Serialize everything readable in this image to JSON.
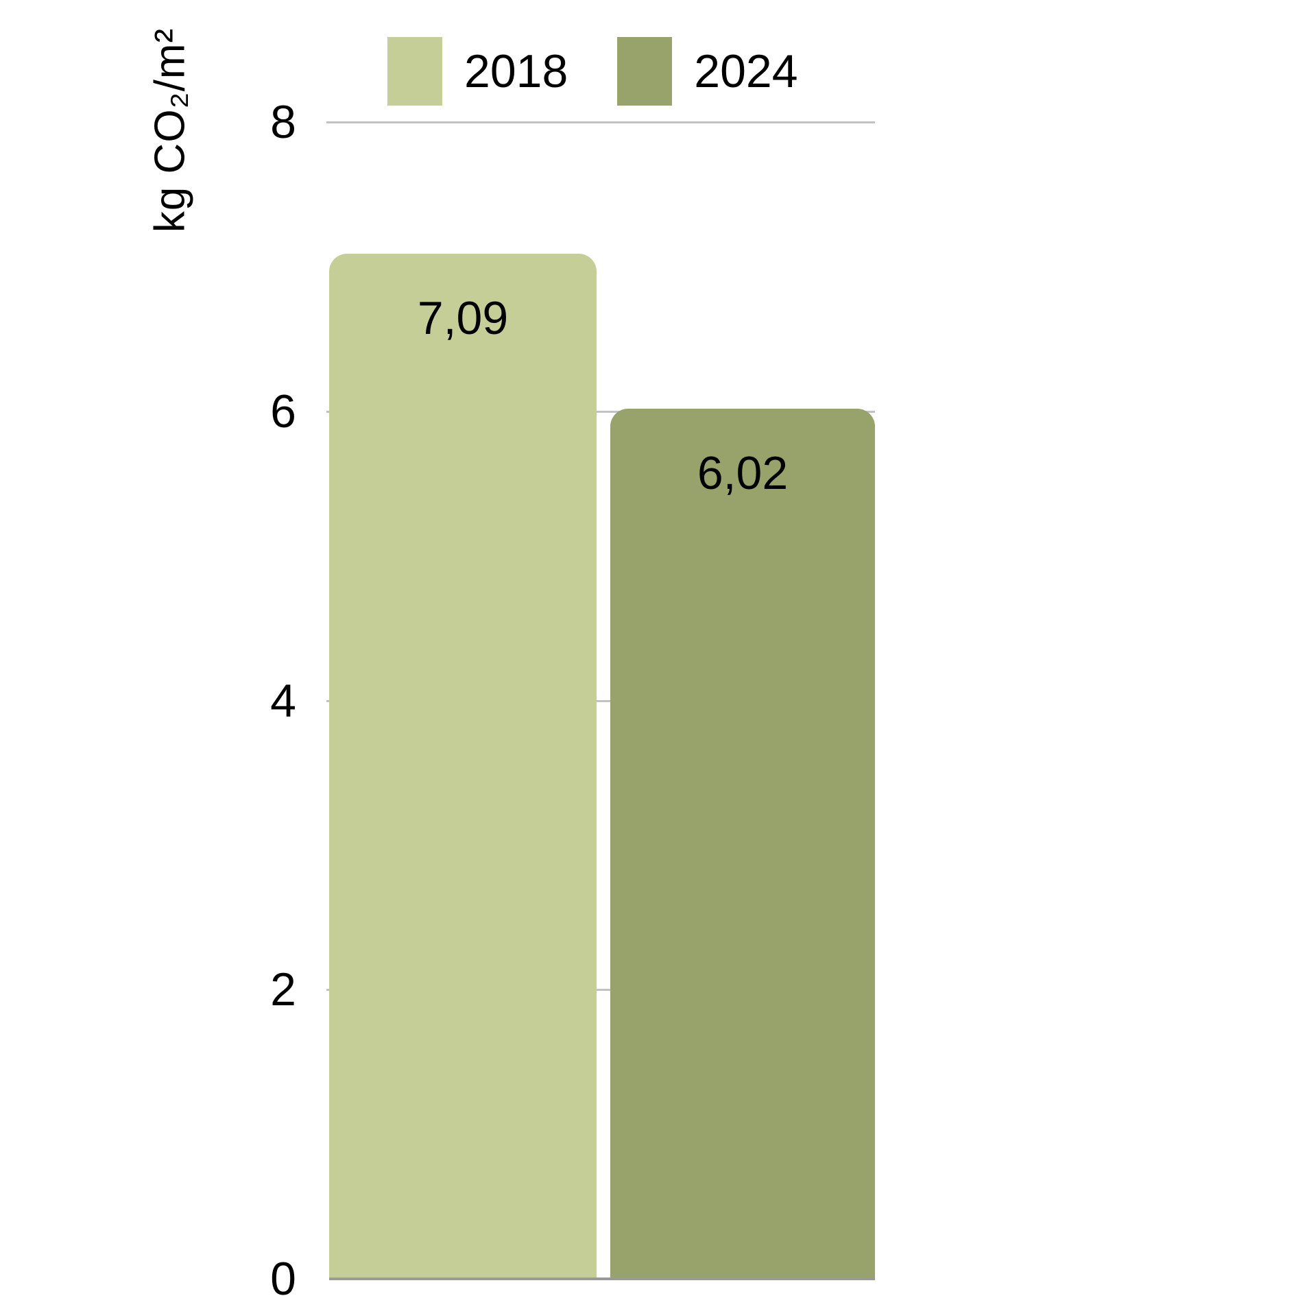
{
  "chart_data": {
    "type": "bar",
    "title": "",
    "xlabel": "",
    "ylabel": "kg CO₂/m²",
    "categories": [
      ""
    ],
    "series": [
      {
        "name": "2018",
        "color": "#c5ce97",
        "values": [
          7.09
        ],
        "value_labels": [
          "7,09"
        ]
      },
      {
        "name": "2024",
        "color": "#98a26b",
        "values": [
          6.02
        ],
        "value_labels": [
          "6,02"
        ]
      }
    ],
    "ylim": [
      0,
      8
    ],
    "yticks": [
      0,
      2,
      4,
      6,
      8
    ],
    "grid": true,
    "legend_position": "top",
    "decimal_separator": ","
  },
  "legend": {
    "items": [
      {
        "label": "2018",
        "color": "#c5ce97"
      },
      {
        "label": "2024",
        "color": "#98a26b"
      }
    ]
  },
  "colors": {
    "grid": "#c2c2c6",
    "baseline": "#9a9a9a",
    "text": "#000000",
    "background": "#ffffff"
  }
}
